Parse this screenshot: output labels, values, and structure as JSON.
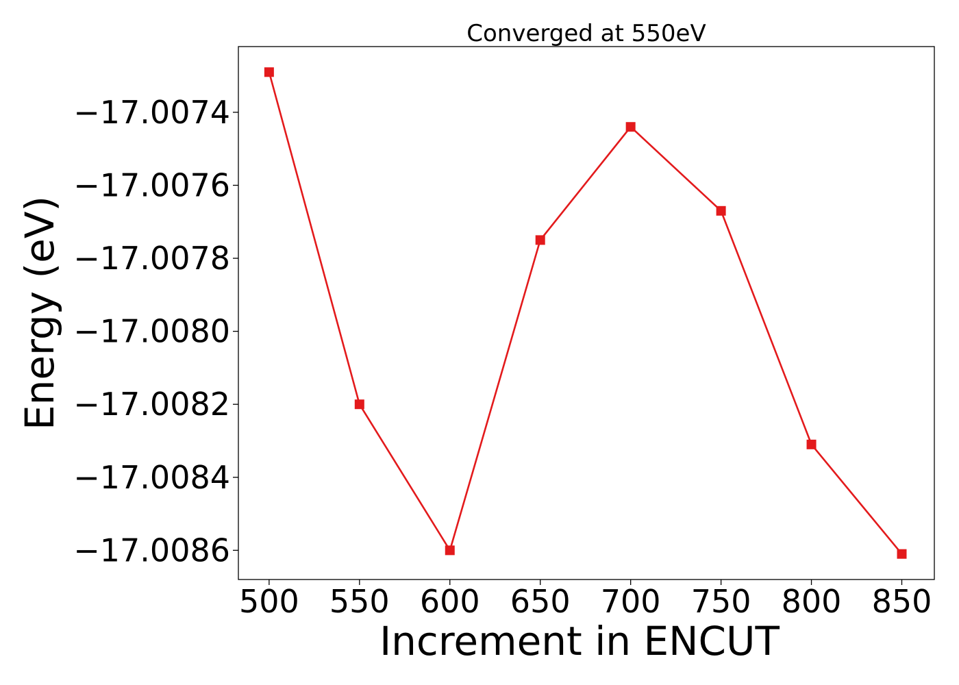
{
  "chart_data": {
    "type": "line",
    "title": "Converged at 550eV",
    "xlabel": "Increment in ENCUT",
    "ylabel": "Energy (eV)",
    "x": [
      500,
      550,
      600,
      650,
      700,
      750,
      800,
      850
    ],
    "series": [
      {
        "values": [
          -17.00729,
          -17.0082,
          -17.0086,
          -17.00775,
          -17.00744,
          -17.00767,
          -17.00831,
          -17.00861
        ],
        "color": "#e31a1c",
        "marker": "square"
      }
    ],
    "xlim": [
      483,
      868
    ],
    "ylim": [
      -17.00868,
      -17.00722
    ],
    "xticks": [
      500,
      550,
      600,
      650,
      700,
      750,
      800,
      850
    ],
    "xtick_labels": [
      "500",
      "550",
      "600",
      "650",
      "700",
      "750",
      "800",
      "850"
    ],
    "yticks": [
      -17.0074,
      -17.0076,
      -17.0078,
      -17.008,
      -17.0082,
      -17.0084,
      -17.0086
    ],
    "ytick_labels": [
      "−17.0074",
      "−17.0076",
      "−17.0078",
      "−17.0080",
      "−17.0082",
      "−17.0084",
      "−17.0086"
    ],
    "grid": false,
    "legend": "none"
  }
}
